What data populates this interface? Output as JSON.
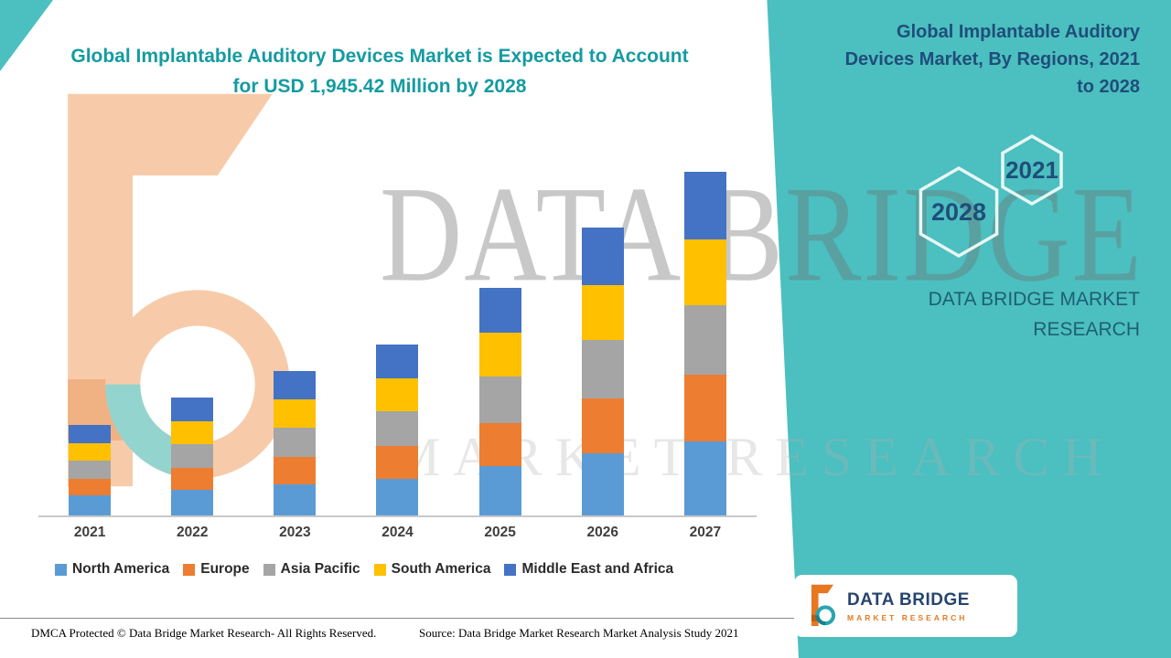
{
  "header": {
    "title": "Global Implantable Auditory Devices Market is Expected to Account for USD 1,945.42 Million by 2028"
  },
  "right_panel": {
    "title": "Global Implantable Auditory Devices Market, By Regions, 2021 to 2028",
    "hexagon_back_year": "2028",
    "hexagon_front_year": "2021",
    "brand": "DATA BRIDGE MARKET RESEARCH"
  },
  "watermark": {
    "line1": "DATA BRIDGE",
    "line2": "MARKET RESEARCH"
  },
  "footer": {
    "dmca": "DMCA Protected © Data Bridge Market Research- All Rights Reserved.",
    "source": "Source: Data Bridge Market Research Market Analysis Study 2021"
  },
  "footer_logo": {
    "name": "DATA BRIDGE",
    "tagline": "MARKET RESEARCH"
  },
  "colors": {
    "teal_background": "#4CBFC0",
    "title_teal": "#149BA1",
    "dark_blue": "#1F4E79",
    "brand_dark": "#1E5F74"
  },
  "chart_data": {
    "type": "bar",
    "stacked": true,
    "title": "Global Implantable Auditory Devices Market, By Regions, 2021 to 2028",
    "xlabel": "",
    "ylabel": "",
    "values_unit": "USD Million (estimated from bar heights; 2028 forecast anchor = 1,945.42)",
    "grid": false,
    "legend_position": "bottom",
    "categories": [
      "2021",
      "2022",
      "2023",
      "2024",
      "2025",
      "2026",
      "2027"
    ],
    "series": [
      {
        "name": "North America",
        "color": "#5B9BD5",
        "values": [
          105,
          135,
          165,
          195,
          260,
          330,
          395
        ]
      },
      {
        "name": "Europe",
        "color": "#ED7D31",
        "values": [
          90,
          118,
          145,
          172,
          230,
          290,
          350
        ]
      },
      {
        "name": "Asia Pacific",
        "color": "#A5A5A5",
        "values": [
          98,
          127,
          156,
          185,
          246,
          310,
          370
        ]
      },
      {
        "name": "South America",
        "color": "#FFC000",
        "values": [
          92,
          120,
          148,
          175,
          233,
          294,
          350
        ]
      },
      {
        "name": "Middle East and Africa",
        "color": "#4472C4",
        "values": [
          95,
          124,
          152,
          180,
          240,
          303,
          360
        ]
      }
    ],
    "totals": [
      480,
      624,
      766,
      907,
      1209,
      1527,
      1825
    ]
  }
}
